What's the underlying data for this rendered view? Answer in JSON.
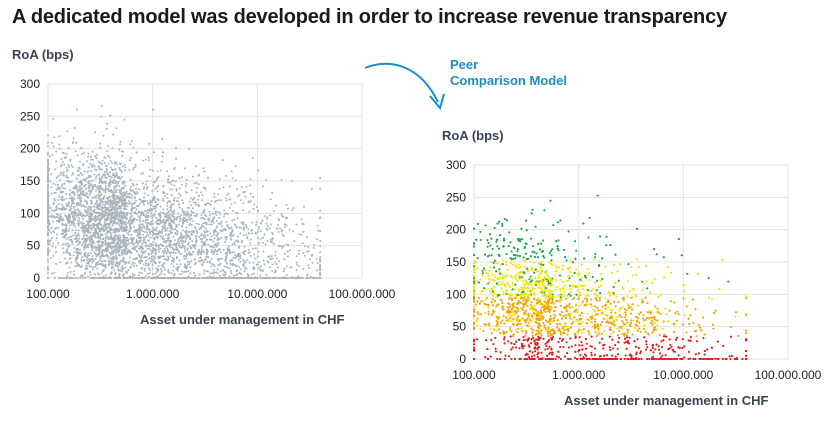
{
  "title": "A dedicated model was developed in order to increase revenue transparency",
  "annotation": {
    "line1": "Peer",
    "line2": "Comparison Model",
    "color": "#1a8fc4"
  },
  "colors": {
    "grey_points": "#a9b4bd",
    "grid": "#e3e3e3",
    "red": "#e31b1b",
    "orange": "#f5a300",
    "yellow": "#f2e600",
    "green": "#1aa64b"
  },
  "chart_data": [
    {
      "type": "scatter",
      "title": "",
      "ylabel": "RoA (bps)",
      "xlabel": "Asset under management in CHF",
      "xscale": "log",
      "xlim": [
        100000,
        100000000
      ],
      "ylim": [
        0,
        300
      ],
      "xticks": [
        "100.000",
        "1.000.000",
        "10.000.000",
        "100.000.000"
      ],
      "yticks": [
        "0",
        "50",
        "100",
        "150",
        "200",
        "250",
        "300"
      ],
      "grid": true,
      "series": [
        {
          "color": "#a9b4bd",
          "density_bins": [
            {
              "x_range": [
                100000,
                316000
              ],
              "y_range": [
                0,
                300
              ],
              "share": 0.34
            },
            {
              "x_range": [
                316000,
                1000000
              ],
              "y_range": [
                0,
                300
              ],
              "share": 0.33
            },
            {
              "x_range": [
                1000000,
                3160000
              ],
              "y_range": [
                0,
                250
              ],
              "share": 0.22
            },
            {
              "x_range": [
                3160000,
                10000000
              ],
              "y_range": [
                0,
                200
              ],
              "share": 0.08
            },
            {
              "x_range": [
                10000000,
                100000000
              ],
              "y_range": [
                0,
                200
              ],
              "share": 0.03
            }
          ]
        }
      ]
    },
    {
      "type": "scatter",
      "title": "",
      "ylabel": "RoA (bps)",
      "xlabel": "Asset under management in CHF",
      "xscale": "log",
      "xlim": [
        100000,
        100000000
      ],
      "ylim": [
        0,
        300
      ],
      "xticks": [
        "100.000",
        "1.000.000",
        "10.000.000",
        "100.000.000"
      ],
      "yticks": [
        "0",
        "50",
        "100",
        "150",
        "200",
        "250",
        "300"
      ],
      "grid": true,
      "series": [
        {
          "color": "#e31b1b",
          "y_band": [
            0,
            45
          ]
        },
        {
          "color": "#f5a300",
          "y_band": [
            30,
            110
          ]
        },
        {
          "color": "#f2e600",
          "y_band": [
            80,
            180
          ]
        },
        {
          "color": "#1aa64b",
          "y_band": [
            140,
            300
          ]
        }
      ]
    }
  ]
}
